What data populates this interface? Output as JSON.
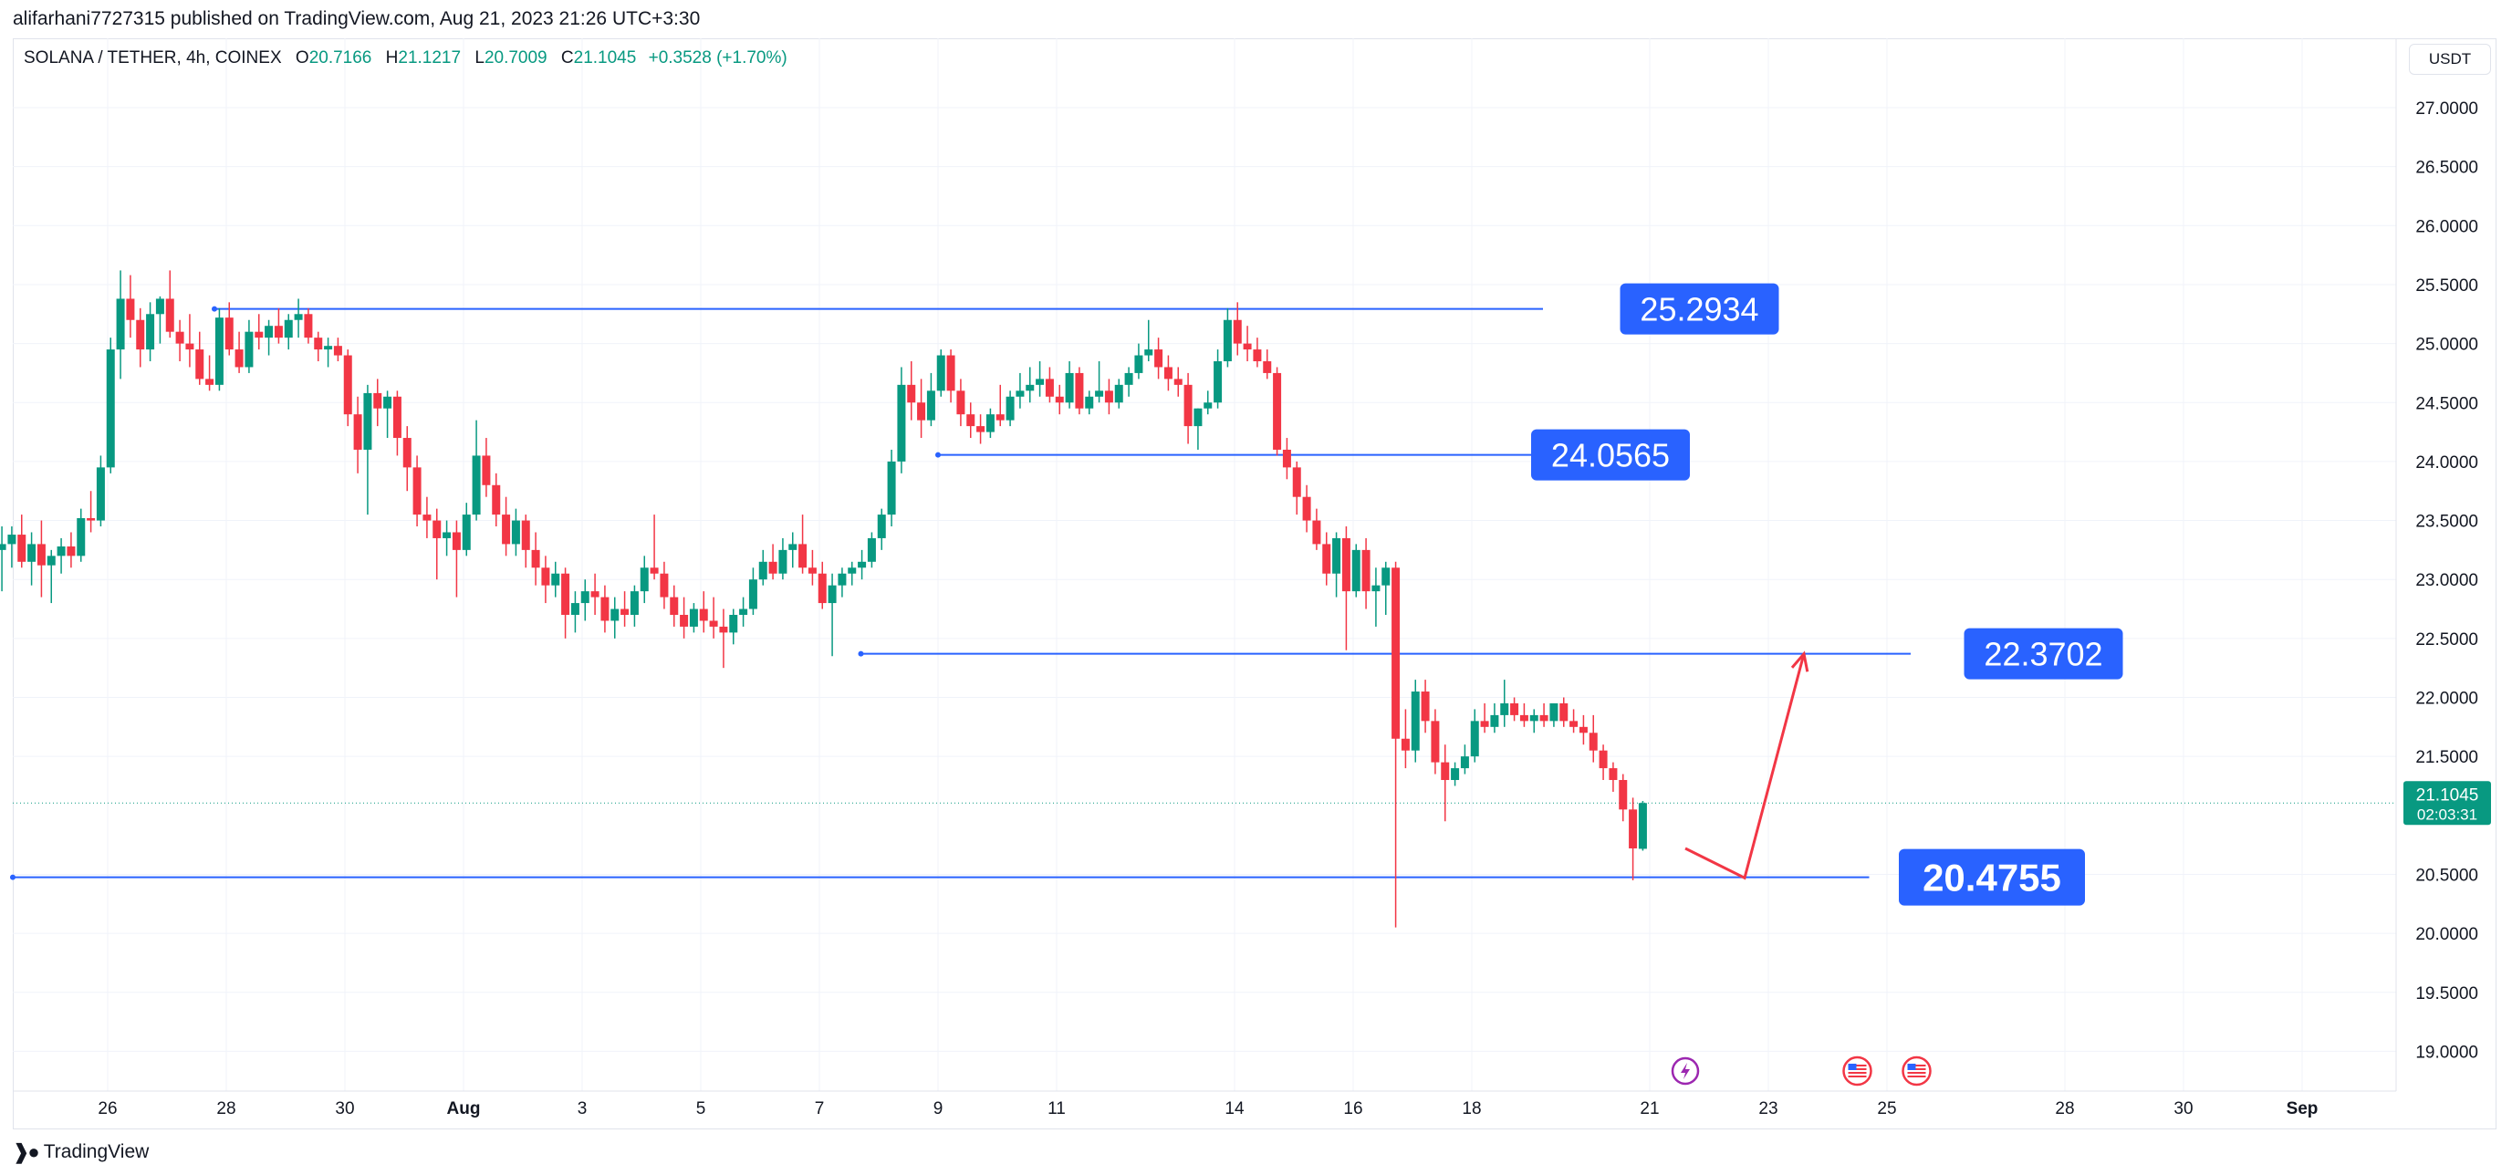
{
  "header": {
    "published_line": "alifarhani7727315 published on TradingView.com, Aug 21, 2023 21:26 UTC+3:30"
  },
  "legend": {
    "symbol": "SOLANA / TETHER, 4h, COINEX",
    "o_label": "O",
    "o_value": "20.7166",
    "h_label": "H",
    "h_value": "21.1217",
    "l_label": "L",
    "l_value": "20.7009",
    "c_label": "C",
    "c_value": "21.1045",
    "change": "+0.3528 (+1.70%)"
  },
  "currency_button": "USDT",
  "footer": {
    "brand": "TradingView"
  },
  "colors": {
    "up": "#089981",
    "down": "#f23645",
    "level_line": "#2962ff",
    "label_bg": "#2962ff",
    "arrow": "#f23645",
    "grid": "#f0f3fa"
  },
  "chart_data": {
    "type": "candlestick",
    "price_axis_ticks": [
      "27.0000",
      "26.5000",
      "26.0000",
      "25.5000",
      "25.0000",
      "24.5000",
      "24.0000",
      "23.5000",
      "23.0000",
      "22.5000",
      "22.0000",
      "21.5000",
      "20.5000",
      "20.0000",
      "19.5000",
      "19.0000"
    ],
    "time_axis_ticks": [
      {
        "label": "26",
        "day": 26
      },
      {
        "label": "28",
        "day": 28
      },
      {
        "label": "30",
        "day": 30
      },
      {
        "label": "Aug",
        "day": 32,
        "bold": true
      },
      {
        "label": "3",
        "day": 34
      },
      {
        "label": "5",
        "day": 36
      },
      {
        "label": "7",
        "day": 38
      },
      {
        "label": "9",
        "day": 40
      },
      {
        "label": "11",
        "day": 42
      },
      {
        "label": "14",
        "day": 45
      },
      {
        "label": "16",
        "day": 47
      },
      {
        "label": "18",
        "day": 49
      },
      {
        "label": "21",
        "day": 52
      },
      {
        "label": "23",
        "day": 54
      },
      {
        "label": "25",
        "day": 56
      },
      {
        "label": "28",
        "day": 59
      },
      {
        "label": "30",
        "day": 61
      },
      {
        "label": "Sep",
        "day": 63,
        "bold": true
      }
    ],
    "current_price": {
      "value": 21.1045,
      "label": "21.1045",
      "countdown": "02:03:31"
    },
    "levels": [
      {
        "price": 25.2934,
        "label": "25.2934",
        "from_day": 27.8,
        "to_day": 50.2,
        "label_day": 51.5
      },
      {
        "price": 24.0565,
        "label": "24.0565",
        "from_day": 40.0,
        "to_day": 50.0,
        "label_day": 50.0
      },
      {
        "price": 22.3702,
        "label": "22.3702",
        "from_day": 38.7,
        "to_day": 56.4,
        "label_day": 57.3
      },
      {
        "price": 20.4755,
        "label": "20.4755",
        "from_day": 24.4,
        "to_day": 55.7,
        "label_day": 56.2,
        "large": true
      }
    ],
    "projection_arrow": [
      {
        "day": 52.6,
        "price": 20.72
      },
      {
        "day": 53.6,
        "price": 20.47
      },
      {
        "day": 54.6,
        "price": 22.37
      }
    ],
    "event_icons": [
      {
        "name": "lightning-event-icon",
        "day": 52.6
      },
      {
        "name": "us-flag-event-icon",
        "day": 55.5
      },
      {
        "name": "us-flag-event-icon",
        "day": 56.5
      }
    ],
    "candles": [
      [
        23.62,
        23.7,
        23.15,
        23.25
      ],
      [
        23.25,
        23.45,
        22.9,
        23.3
      ],
      [
        23.3,
        23.45,
        23.1,
        23.38
      ],
      [
        23.38,
        23.55,
        23.1,
        23.15
      ],
      [
        23.15,
        23.4,
        22.95,
        23.3
      ],
      [
        23.3,
        23.5,
        22.85,
        23.12
      ],
      [
        23.12,
        23.25,
        22.8,
        23.2
      ],
      [
        23.2,
        23.35,
        23.05,
        23.28
      ],
      [
        23.28,
        23.4,
        23.1,
        23.2
      ],
      [
        23.2,
        23.6,
        23.15,
        23.52
      ],
      [
        23.52,
        23.75,
        23.4,
        23.5
      ],
      [
        23.5,
        24.05,
        23.45,
        23.95
      ],
      [
        23.95,
        25.05,
        23.9,
        24.95
      ],
      [
        24.95,
        25.62,
        24.7,
        25.38
      ],
      [
        25.38,
        25.58,
        25.05,
        25.2
      ],
      [
        25.2,
        25.3,
        24.8,
        24.95
      ],
      [
        24.95,
        25.35,
        24.85,
        25.25
      ],
      [
        25.25,
        25.4,
        25.0,
        25.38
      ],
      [
        25.38,
        25.62,
        25.05,
        25.1
      ],
      [
        25.1,
        25.2,
        24.85,
        25.0
      ],
      [
        25.0,
        25.25,
        24.8,
        24.95
      ],
      [
        24.95,
        25.1,
        24.65,
        24.7
      ],
      [
        24.7,
        24.9,
        24.6,
        24.65
      ],
      [
        24.65,
        25.3,
        24.6,
        25.22
      ],
      [
        25.22,
        25.35,
        24.9,
        24.95
      ],
      [
        24.95,
        25.1,
        24.75,
        24.8
      ],
      [
        24.8,
        25.2,
        24.75,
        25.1
      ],
      [
        25.1,
        25.25,
        24.95,
        25.05
      ],
      [
        25.05,
        25.2,
        24.9,
        25.15
      ],
      [
        25.15,
        25.3,
        25.0,
        25.05
      ],
      [
        25.05,
        25.25,
        24.95,
        25.2
      ],
      [
        25.2,
        25.38,
        25.05,
        25.25
      ],
      [
        25.25,
        25.3,
        25.0,
        25.05
      ],
      [
        25.05,
        25.1,
        24.85,
        24.95
      ],
      [
        24.95,
        25.05,
        24.8,
        24.98
      ],
      [
        24.98,
        25.05,
        24.85,
        24.9
      ],
      [
        24.9,
        24.95,
        24.3,
        24.4
      ],
      [
        24.4,
        24.55,
        23.9,
        24.1
      ],
      [
        24.1,
        24.65,
        23.55,
        24.58
      ],
      [
        24.58,
        24.7,
        24.3,
        24.45
      ],
      [
        24.45,
        24.6,
        24.2,
        24.55
      ],
      [
        24.55,
        24.6,
        24.05,
        24.2
      ],
      [
        24.2,
        24.3,
        23.75,
        23.95
      ],
      [
        23.95,
        24.05,
        23.45,
        23.55
      ],
      [
        23.55,
        23.7,
        23.35,
        23.5
      ],
      [
        23.5,
        23.6,
        23.0,
        23.35
      ],
      [
        23.35,
        23.5,
        23.2,
        23.4
      ],
      [
        23.4,
        23.5,
        22.85,
        23.25
      ],
      [
        23.25,
        23.65,
        23.2,
        23.55
      ],
      [
        23.55,
        24.35,
        23.5,
        24.05
      ],
      [
        24.05,
        24.2,
        23.7,
        23.8
      ],
      [
        23.8,
        23.9,
        23.45,
        23.55
      ],
      [
        23.55,
        23.7,
        23.2,
        23.3
      ],
      [
        23.3,
        23.6,
        23.2,
        23.5
      ],
      [
        23.5,
        23.55,
        23.1,
        23.25
      ],
      [
        23.25,
        23.4,
        22.95,
        23.1
      ],
      [
        23.1,
        23.2,
        22.8,
        22.95
      ],
      [
        22.95,
        23.15,
        22.85,
        23.05
      ],
      [
        23.05,
        23.1,
        22.5,
        22.7
      ],
      [
        22.7,
        22.9,
        22.55,
        22.8
      ],
      [
        22.8,
        23.0,
        22.65,
        22.9
      ],
      [
        22.9,
        23.05,
        22.7,
        22.85
      ],
      [
        22.85,
        22.95,
        22.55,
        22.65
      ],
      [
        22.65,
        22.85,
        22.5,
        22.75
      ],
      [
        22.75,
        22.9,
        22.6,
        22.7
      ],
      [
        22.7,
        22.95,
        22.6,
        22.9
      ],
      [
        22.9,
        23.2,
        22.8,
        23.1
      ],
      [
        23.1,
        23.55,
        23.0,
        23.05
      ],
      [
        23.05,
        23.15,
        22.75,
        22.85
      ],
      [
        22.85,
        22.95,
        22.6,
        22.7
      ],
      [
        22.7,
        22.85,
        22.5,
        22.6
      ],
      [
        22.6,
        22.8,
        22.55,
        22.75
      ],
      [
        22.75,
        22.9,
        22.55,
        22.65
      ],
      [
        22.65,
        22.85,
        22.5,
        22.6
      ],
      [
        22.6,
        22.75,
        22.25,
        22.55
      ],
      [
        22.55,
        22.75,
        22.45,
        22.7
      ],
      [
        22.7,
        22.85,
        22.6,
        22.75
      ],
      [
        22.75,
        23.1,
        22.7,
        23.0
      ],
      [
        23.0,
        23.25,
        22.95,
        23.15
      ],
      [
        23.15,
        23.3,
        23.0,
        23.05
      ],
      [
        23.05,
        23.35,
        23.0,
        23.25
      ],
      [
        23.25,
        23.4,
        23.1,
        23.3
      ],
      [
        23.3,
        23.55,
        23.05,
        23.1
      ],
      [
        23.1,
        23.25,
        22.95,
        23.05
      ],
      [
        23.05,
        23.15,
        22.75,
        22.8
      ],
      [
        22.8,
        23.05,
        22.35,
        22.95
      ],
      [
        22.95,
        23.1,
        22.85,
        23.05
      ],
      [
        23.05,
        23.15,
        22.95,
        23.1
      ],
      [
        23.1,
        23.25,
        23.0,
        23.15
      ],
      [
        23.15,
        23.4,
        23.1,
        23.35
      ],
      [
        23.35,
        23.6,
        23.25,
        23.55
      ],
      [
        23.55,
        24.1,
        23.45,
        24.0
      ],
      [
        24.0,
        24.8,
        23.9,
        24.65
      ],
      [
        24.65,
        24.85,
        24.35,
        24.5
      ],
      [
        24.5,
        24.7,
        24.2,
        24.35
      ],
      [
        24.35,
        24.75,
        24.3,
        24.6
      ],
      [
        24.6,
        24.95,
        24.55,
        24.9
      ],
      [
        24.9,
        24.95,
        24.5,
        24.6
      ],
      [
        24.6,
        24.7,
        24.3,
        24.4
      ],
      [
        24.4,
        24.5,
        24.2,
        24.3
      ],
      [
        24.3,
        24.4,
        24.15,
        24.25
      ],
      [
        24.25,
        24.45,
        24.2,
        24.4
      ],
      [
        24.4,
        24.65,
        24.3,
        24.35
      ],
      [
        24.35,
        24.6,
        24.3,
        24.55
      ],
      [
        24.55,
        24.75,
        24.45,
        24.6
      ],
      [
        24.6,
        24.8,
        24.5,
        24.65
      ],
      [
        24.65,
        24.85,
        24.55,
        24.7
      ],
      [
        24.7,
        24.8,
        24.5,
        24.55
      ],
      [
        24.55,
        24.65,
        24.4,
        24.5
      ],
      [
        24.5,
        24.85,
        24.45,
        24.75
      ],
      [
        24.75,
        24.8,
        24.4,
        24.45
      ],
      [
        24.45,
        24.6,
        24.4,
        24.55
      ],
      [
        24.55,
        24.85,
        24.5,
        24.6
      ],
      [
        24.6,
        24.7,
        24.4,
        24.5
      ],
      [
        24.5,
        24.7,
        24.45,
        24.65
      ],
      [
        24.65,
        24.8,
        24.55,
        24.75
      ],
      [
        24.75,
        25.0,
        24.7,
        24.9
      ],
      [
        24.9,
        25.2,
        24.85,
        24.95
      ],
      [
        24.95,
        25.05,
        24.7,
        24.8
      ],
      [
        24.8,
        24.9,
        24.6,
        24.7
      ],
      [
        24.7,
        24.8,
        24.55,
        24.65
      ],
      [
        24.65,
        24.75,
        24.15,
        24.3
      ],
      [
        24.3,
        24.45,
        24.1,
        24.45
      ],
      [
        24.45,
        24.6,
        24.4,
        24.5
      ],
      [
        24.5,
        24.95,
        24.45,
        24.85
      ],
      [
        24.85,
        25.3,
        24.8,
        25.2
      ],
      [
        25.2,
        25.35,
        24.9,
        25.0
      ],
      [
        25.0,
        25.15,
        24.85,
        24.95
      ],
      [
        24.95,
        25.05,
        24.8,
        24.85
      ],
      [
        24.85,
        24.95,
        24.7,
        24.75
      ],
      [
        24.75,
        24.8,
        24.05,
        24.1
      ],
      [
        24.1,
        24.2,
        23.85,
        23.95
      ],
      [
        23.95,
        24.0,
        23.55,
        23.7
      ],
      [
        23.7,
        23.8,
        23.4,
        23.5
      ],
      [
        23.5,
        23.6,
        23.25,
        23.3
      ],
      [
        23.3,
        23.4,
        22.95,
        23.05
      ],
      [
        23.05,
        23.4,
        22.85,
        23.35
      ],
      [
        23.35,
        23.45,
        22.4,
        22.9
      ],
      [
        22.9,
        23.3,
        22.85,
        23.25
      ],
      [
        23.25,
        23.35,
        22.75,
        22.9
      ],
      [
        22.9,
        23.1,
        22.6,
        22.95
      ],
      [
        22.95,
        23.15,
        22.7,
        23.1
      ],
      [
        23.1,
        23.15,
        20.05,
        21.65
      ],
      [
        21.65,
        21.9,
        21.4,
        21.55
      ],
      [
        21.55,
        22.15,
        21.45,
        22.05
      ],
      [
        22.05,
        22.15,
        21.7,
        21.8
      ],
      [
        21.8,
        21.9,
        21.35,
        21.45
      ],
      [
        21.45,
        21.6,
        20.95,
        21.3
      ],
      [
        21.3,
        21.45,
        21.25,
        21.4
      ],
      [
        21.4,
        21.6,
        21.35,
        21.5
      ],
      [
        21.5,
        21.9,
        21.45,
        21.8
      ],
      [
        21.8,
        21.95,
        21.7,
        21.75
      ],
      [
        21.75,
        21.95,
        21.7,
        21.85
      ],
      [
        21.85,
        22.15,
        21.75,
        21.95
      ],
      [
        21.95,
        22.0,
        21.8,
        21.85
      ],
      [
        21.85,
        21.95,
        21.75,
        21.8
      ],
      [
        21.8,
        21.9,
        21.7,
        21.85
      ],
      [
        21.85,
        21.95,
        21.75,
        21.8
      ],
      [
        21.8,
        21.95,
        21.75,
        21.95
      ],
      [
        21.95,
        22.0,
        21.75,
        21.8
      ],
      [
        21.8,
        21.9,
        21.7,
        21.75
      ],
      [
        21.75,
        21.85,
        21.6,
        21.7
      ],
      [
        21.7,
        21.85,
        21.45,
        21.55
      ],
      [
        21.55,
        21.6,
        21.3,
        21.4
      ],
      [
        21.4,
        21.45,
        21.2,
        21.3
      ],
      [
        21.3,
        21.35,
        20.95,
        21.05
      ],
      [
        21.05,
        21.15,
        20.45,
        20.72
      ],
      [
        20.7166,
        21.1217,
        20.7009,
        21.1045
      ]
    ]
  }
}
